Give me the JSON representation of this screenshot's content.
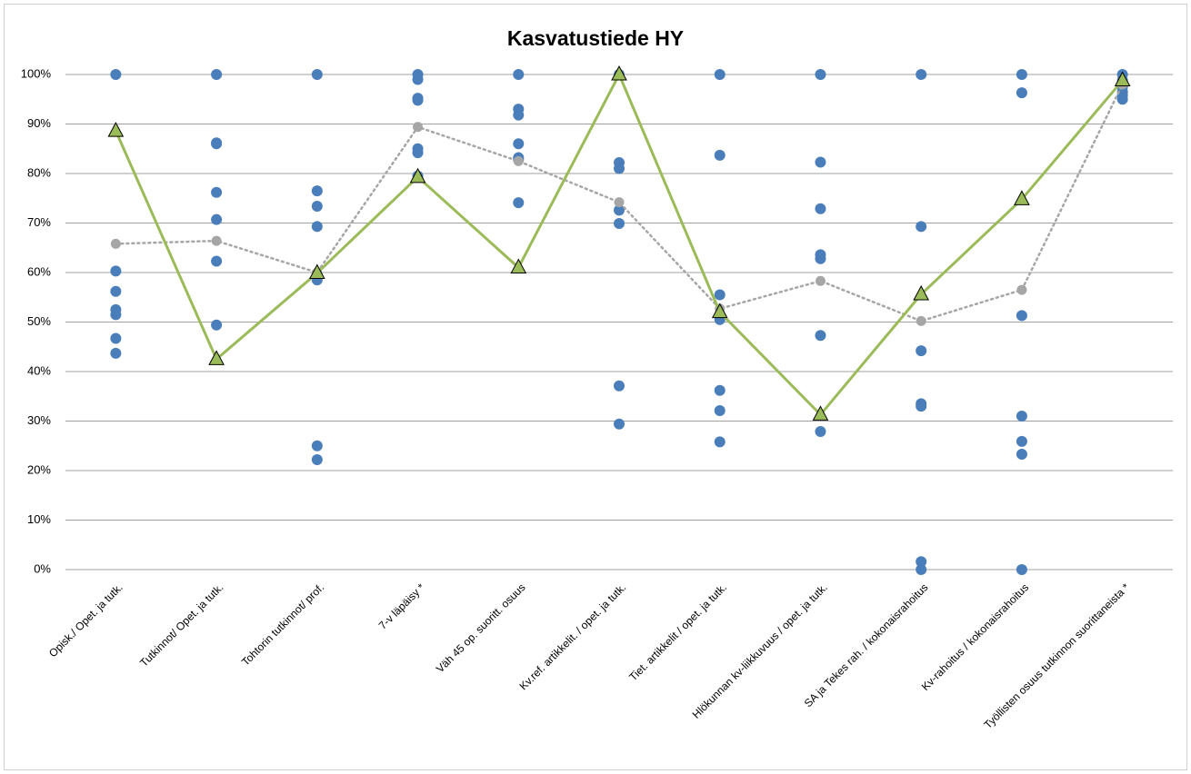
{
  "chart_data": {
    "type": "line",
    "title": "Kasvatustiede HY",
    "categories": [
      "Opisk./ Opet. ja tutk.",
      "Tutkinnot/ Opet. ja tutk.",
      "Tohtorin tutkinnot/ prof.",
      "7-v läpäisy *",
      "Väh 45 op. suoritt. osuus",
      "Kv.ref. artikkelit. / opet. ja tutk.",
      "Tiet. artikkelit / opet. ja tutk.",
      "Hlökunnan kv-liikkuvuus / opet. ja tutk.",
      "SA ja Tekes rah. / kokonaisrahoitus",
      "Kv-rahoitus / kokonaisrahoitus",
      "Työllisten osuus tutkinnon suorittaneista *"
    ],
    "ylim": [
      0,
      100
    ],
    "yticks": [
      {
        "value": 0,
        "label": "0%"
      },
      {
        "value": 10,
        "label": "10%"
      },
      {
        "value": 20,
        "label": "20%"
      },
      {
        "value": 30,
        "label": "30%"
      },
      {
        "value": 40,
        "label": "40%"
      },
      {
        "value": 50,
        "label": "50%"
      },
      {
        "value": 60,
        "label": "60%"
      },
      {
        "value": 70,
        "label": "70%"
      },
      {
        "value": 80,
        "label": "80%"
      },
      {
        "value": 90,
        "label": "90%"
      },
      {
        "value": 100,
        "label": "100%"
      }
    ],
    "grid": true,
    "series": [
      {
        "type": "scatter",
        "color": "#4a7ebb",
        "values": [
          [
            100,
            60.3,
            56.2,
            52.5,
            51.5,
            46.7,
            43.7
          ],
          [
            100,
            86.2,
            86,
            76.2,
            70.7,
            62.3,
            49.4
          ],
          [
            100,
            76.5,
            73.4,
            69.3,
            59.5,
            58.5,
            25,
            22.2
          ],
          [
            100,
            99,
            95.2,
            94.8,
            85,
            84.2,
            79.5
          ],
          [
            100,
            93,
            91.8,
            86,
            83.2,
            82.8,
            74.1
          ],
          [
            100,
            82.2,
            81,
            72.6,
            69.9,
            37.1,
            29.4
          ],
          [
            100,
            83.7,
            55.5,
            50.5,
            36.2,
            32.1,
            25.8
          ],
          [
            100,
            82.3,
            72.9,
            63.6,
            62.8,
            47.3,
            27.9
          ],
          [
            100,
            69.3,
            44.2,
            33.5,
            33,
            1.6,
            0
          ],
          [
            100,
            96.3,
            51.3,
            31,
            25.9,
            23.3,
            0
          ],
          [
            100,
            98.8,
            97.5,
            96.5,
            95.8,
            95
          ]
        ]
      },
      {
        "type": "line",
        "style": "dotted",
        "marker": "circle",
        "color": "#a6a6a6",
        "values": [
          65.8,
          66.4,
          60,
          89.4,
          82.5,
          74.2,
          52.7,
          58.3,
          50.2,
          56.5,
          98
        ]
      },
      {
        "type": "line",
        "style": "solid",
        "marker": "triangle",
        "color": "#9bbb59",
        "values": [
          88.6,
          42.5,
          59.9,
          79.3,
          61,
          100,
          52,
          31.3,
          55.6,
          74.8,
          98.8
        ]
      }
    ]
  }
}
